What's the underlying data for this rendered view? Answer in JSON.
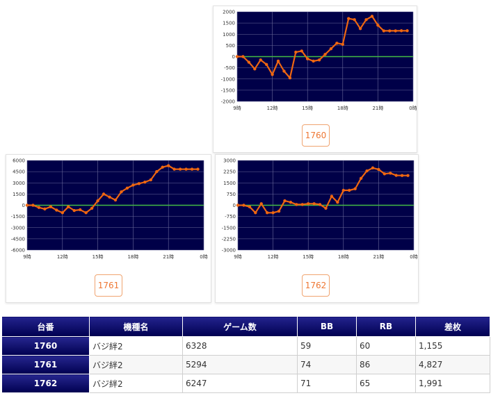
{
  "charts": [
    {
      "machine": "1760",
      "chart_data": {
        "type": "line",
        "ylim": [
          -2000,
          2000
        ],
        "yticks": [
          "2000",
          "1500",
          "1000",
          "500",
          "0",
          "-500",
          "-1000",
          "-1500",
          "-2000"
        ],
        "xticks": [
          "9時",
          "12時",
          "15時",
          "18時",
          "21時",
          "0時"
        ],
        "x": [
          9.0,
          9.5,
          10.0,
          10.5,
          11.0,
          11.5,
          12.0,
          12.5,
          13.0,
          13.5,
          14.0,
          14.5,
          15.0,
          15.5,
          16.0,
          16.5,
          17.0,
          17.5,
          18.0,
          18.5,
          19.0,
          19.5,
          20.0,
          20.5,
          21.0,
          21.5,
          22.0,
          22.5,
          23.0,
          23.5
        ],
        "values": [
          0,
          0,
          -250,
          -550,
          -150,
          -350,
          -800,
          -200,
          -650,
          -950,
          200,
          250,
          -100,
          -200,
          -150,
          100,
          350,
          600,
          550,
          1700,
          1650,
          1250,
          1650,
          1800,
          1400,
          1150,
          1150,
          1150,
          1155,
          1155
        ],
        "line_color": "#ee6611",
        "zero_color": "#44bb44",
        "plot_bg": "#000048"
      }
    },
    {
      "machine": "1761",
      "chart_data": {
        "type": "line",
        "ylim": [
          -6000,
          6000
        ],
        "yticks": [
          "6000",
          "4500",
          "3000",
          "1500",
          "0",
          "-1500",
          "-3000",
          "-4500",
          "-6000"
        ],
        "xticks": [
          "9時",
          "12時",
          "15時",
          "18時",
          "21時",
          "0時"
        ],
        "x": [
          9.0,
          9.5,
          10.0,
          10.5,
          11.0,
          11.5,
          12.0,
          12.5,
          13.0,
          13.5,
          14.0,
          14.5,
          15.0,
          15.5,
          16.0,
          16.5,
          17.0,
          17.5,
          18.0,
          18.5,
          19.0,
          19.5,
          20.0,
          20.5,
          21.0,
          21.5,
          22.0,
          22.5,
          23.0,
          23.5
        ],
        "values": [
          0,
          0,
          -300,
          -500,
          -200,
          -650,
          -1000,
          -200,
          -700,
          -600,
          -1000,
          -400,
          600,
          1500,
          1100,
          700,
          1800,
          2300,
          2700,
          2900,
          3100,
          3400,
          4500,
          5100,
          5300,
          4827,
          4827,
          4827,
          4827,
          4827
        ],
        "line_color": "#ee6611",
        "zero_color": "#44bb44",
        "plot_bg": "#000048"
      }
    },
    {
      "machine": "1762",
      "chart_data": {
        "type": "line",
        "ylim": [
          -3000,
          3000
        ],
        "yticks": [
          "3000",
          "2250",
          "1500",
          "750",
          "0",
          "-750",
          "-1500",
          "-2250",
          "-3000"
        ],
        "xticks": [
          "9時",
          "12時",
          "15時",
          "18時",
          "21時",
          "0時"
        ],
        "x": [
          9.0,
          9.5,
          10.0,
          10.5,
          11.0,
          11.5,
          12.0,
          12.5,
          13.0,
          13.5,
          14.0,
          14.5,
          15.0,
          15.5,
          16.0,
          16.5,
          17.0,
          17.5,
          18.0,
          18.5,
          19.0,
          19.5,
          20.0,
          20.5,
          21.0,
          21.5,
          22.0,
          22.5,
          23.0,
          23.5
        ],
        "values": [
          0,
          0,
          -100,
          -500,
          100,
          -500,
          -500,
          -400,
          300,
          200,
          50,
          50,
          100,
          100,
          50,
          -200,
          600,
          200,
          1000,
          1000,
          1100,
          1800,
          2300,
          2500,
          2400,
          2100,
          2150,
          2000,
          1991,
          1991
        ],
        "line_color": "#ee6611",
        "zero_color": "#44bb44",
        "plot_bg": "#000048"
      }
    }
  ],
  "table": {
    "headers": [
      "台番",
      "機種名",
      "ゲーム数",
      "BB",
      "RB",
      "差枚"
    ],
    "rows": [
      [
        "1760",
        "バジ絆2",
        "6328",
        "59",
        "60",
        "1,155"
      ],
      [
        "1761",
        "バジ絆2",
        "5294",
        "74",
        "86",
        "4,827"
      ],
      [
        "1762",
        "バジ絆2",
        "6247",
        "71",
        "65",
        "1,991"
      ]
    ]
  }
}
